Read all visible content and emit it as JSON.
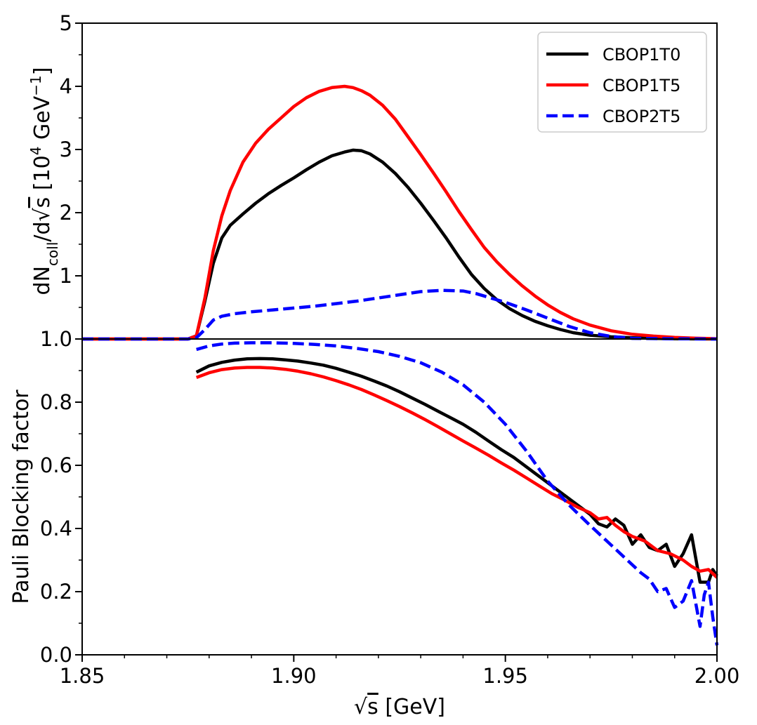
{
  "chart_data": [
    {
      "type": "line",
      "panel": "top",
      "ylabel": {
        "main": "dN",
        "sub": "coll",
        "mid": "/d",
        "root": "√",
        "s": "s",
        "bracket_open": " [10",
        "sup": "4",
        "unit": " GeV",
        "sup2": "−1",
        "bracket_close": "]"
      },
      "xlim": [
        1.85,
        2.0
      ],
      "ylim": [
        0,
        5
      ],
      "yticks": [
        1,
        2,
        3,
        4,
        5
      ],
      "ytick_labels": [
        "1",
        "2",
        "3",
        "4",
        "5"
      ],
      "grid": false,
      "legend_position": "top-right",
      "series": [
        {
          "name": "CBOP1T0",
          "color": "#000000",
          "style": "solid",
          "x": [
            1.85,
            1.875,
            1.877,
            1.879,
            1.881,
            1.883,
            1.885,
            1.888,
            1.891,
            1.894,
            1.897,
            1.9,
            1.903,
            1.906,
            1.909,
            1.912,
            1.914,
            1.916,
            1.918,
            1.921,
            1.924,
            1.927,
            1.93,
            1.933,
            1.936,
            1.939,
            1.942,
            1.945,
            1.948,
            1.951,
            1.954,
            1.957,
            1.96,
            1.963,
            1.966,
            1.97,
            1.975,
            1.98,
            1.985,
            1.99,
            2.0
          ],
          "y": [
            0,
            0,
            0.05,
            0.6,
            1.2,
            1.6,
            1.8,
            1.98,
            2.15,
            2.3,
            2.43,
            2.55,
            2.68,
            2.8,
            2.9,
            2.96,
            2.99,
            2.98,
            2.93,
            2.8,
            2.62,
            2.4,
            2.15,
            1.88,
            1.6,
            1.3,
            1.02,
            0.8,
            0.62,
            0.48,
            0.37,
            0.28,
            0.21,
            0.15,
            0.1,
            0.06,
            0.035,
            0.02,
            0.01,
            0.005,
            0
          ]
        },
        {
          "name": "CBOP1T5",
          "color": "#ff0000",
          "style": "solid",
          "x": [
            1.85,
            1.875,
            1.877,
            1.879,
            1.881,
            1.883,
            1.885,
            1.888,
            1.891,
            1.894,
            1.897,
            1.9,
            1.903,
            1.906,
            1.909,
            1.912,
            1.914,
            1.916,
            1.918,
            1.921,
            1.924,
            1.927,
            1.93,
            1.933,
            1.936,
            1.939,
            1.942,
            1.945,
            1.948,
            1.951,
            1.954,
            1.957,
            1.96,
            1.963,
            1.966,
            1.97,
            1.975,
            1.98,
            1.985,
            1.99,
            1.995,
            2.0
          ],
          "y": [
            0,
            0,
            0.05,
            0.65,
            1.4,
            1.95,
            2.35,
            2.8,
            3.1,
            3.32,
            3.5,
            3.68,
            3.82,
            3.92,
            3.98,
            4.0,
            3.98,
            3.93,
            3.86,
            3.7,
            3.48,
            3.2,
            2.92,
            2.63,
            2.33,
            2.02,
            1.73,
            1.45,
            1.22,
            1.02,
            0.84,
            0.68,
            0.54,
            0.42,
            0.32,
            0.22,
            0.13,
            0.075,
            0.045,
            0.025,
            0.012,
            0.005
          ]
        },
        {
          "name": "CBOP2T5",
          "color": "#0000ff",
          "style": "dashed",
          "x": [
            1.85,
            1.875,
            1.877,
            1.879,
            1.881,
            1.883,
            1.886,
            1.89,
            1.895,
            1.9,
            1.905,
            1.91,
            1.915,
            1.92,
            1.925,
            1.93,
            1.935,
            1.94,
            1.943,
            1.946,
            1.95,
            1.955,
            1.96,
            1.965,
            1.97,
            1.975,
            1.98,
            1.99,
            2.0
          ],
          "y": [
            0,
            0,
            0.02,
            0.15,
            0.3,
            0.36,
            0.4,
            0.43,
            0.46,
            0.49,
            0.52,
            0.56,
            0.6,
            0.65,
            0.7,
            0.75,
            0.77,
            0.76,
            0.72,
            0.66,
            0.58,
            0.46,
            0.33,
            0.2,
            0.1,
            0.04,
            0.01,
            0.003,
            0
          ]
        }
      ]
    },
    {
      "type": "line",
      "panel": "bottom",
      "title": "",
      "xlabel": {
        "root": "√",
        "s": "s",
        "unit": " [GeV]"
      },
      "ylabel": "Pauli Blocking factor",
      "xlim": [
        1.85,
        2.0
      ],
      "ylim": [
        0,
        1.0
      ],
      "xticks": [
        1.85,
        1.9,
        1.95,
        2.0
      ],
      "xtick_labels": [
        "1.85",
        "1.90",
        "1.95",
        "2.00"
      ],
      "yticks": [
        0.0,
        0.2,
        0.4,
        0.6,
        0.8,
        1.0
      ],
      "ytick_labels": [
        "0.0",
        "0.2",
        "0.4",
        "0.6",
        "0.8",
        "1.0"
      ],
      "grid": false,
      "series": [
        {
          "name": "CBOP1T0",
          "color": "#000000",
          "style": "solid",
          "x": [
            1.877,
            1.88,
            1.883,
            1.886,
            1.889,
            1.892,
            1.895,
            1.898,
            1.901,
            1.904,
            1.907,
            1.91,
            1.913,
            1.916,
            1.919,
            1.922,
            1.925,
            1.928,
            1.931,
            1.934,
            1.937,
            1.94,
            1.943,
            1.946,
            1.949,
            1.952,
            1.955,
            1.958,
            1.961,
            1.964,
            1.967,
            1.97,
            1.972,
            1.974,
            1.976,
            1.978,
            1.98,
            1.982,
            1.984,
            1.986,
            1.988,
            1.99,
            1.992,
            1.994,
            1.996,
            1.998,
            1.999,
            2.0
          ],
          "y": [
            0.895,
            0.915,
            0.926,
            0.933,
            0.937,
            0.938,
            0.937,
            0.934,
            0.93,
            0.924,
            0.917,
            0.907,
            0.895,
            0.882,
            0.867,
            0.851,
            0.833,
            0.813,
            0.793,
            0.772,
            0.751,
            0.73,
            0.705,
            0.677,
            0.65,
            0.625,
            0.595,
            0.565,
            0.535,
            0.505,
            0.475,
            0.445,
            0.415,
            0.405,
            0.43,
            0.41,
            0.35,
            0.38,
            0.34,
            0.33,
            0.35,
            0.28,
            0.32,
            0.38,
            0.23,
            0.23,
            0.27,
            0.25
          ]
        },
        {
          "name": "CBOP1T5",
          "color": "#ff0000",
          "style": "solid",
          "x": [
            1.877,
            1.88,
            1.883,
            1.886,
            1.889,
            1.892,
            1.895,
            1.898,
            1.901,
            1.904,
            1.907,
            1.91,
            1.913,
            1.916,
            1.919,
            1.922,
            1.925,
            1.928,
            1.931,
            1.934,
            1.937,
            1.94,
            1.943,
            1.946,
            1.949,
            1.952,
            1.955,
            1.958,
            1.961,
            1.964,
            1.967,
            1.97,
            1.972,
            1.974,
            1.976,
            1.978,
            1.98,
            1.983,
            1.986,
            1.989,
            1.992,
            1.994,
            1.996,
            1.998,
            2.0
          ],
          "y": [
            0.878,
            0.893,
            0.903,
            0.908,
            0.91,
            0.91,
            0.908,
            0.904,
            0.898,
            0.89,
            0.88,
            0.868,
            0.855,
            0.84,
            0.823,
            0.805,
            0.786,
            0.766,
            0.745,
            0.723,
            0.7,
            0.677,
            0.655,
            0.632,
            0.608,
            0.585,
            0.56,
            0.535,
            0.51,
            0.49,
            0.468,
            0.45,
            0.43,
            0.435,
            0.41,
            0.39,
            0.375,
            0.36,
            0.33,
            0.32,
            0.3,
            0.28,
            0.265,
            0.27,
            0.245
          ]
        },
        {
          "name": "CBOP2T5",
          "color": "#0000ff",
          "style": "dashed",
          "x": [
            1.877,
            1.88,
            1.883,
            1.886,
            1.89,
            1.895,
            1.9,
            1.905,
            1.91,
            1.915,
            1.92,
            1.925,
            1.93,
            1.935,
            1.94,
            1.945,
            1.95,
            1.955,
            1.96,
            1.965,
            1.97,
            1.974,
            1.978,
            1.982,
            1.984,
            1.986,
            1.988,
            1.99,
            1.992,
            1.994,
            1.996,
            1.997,
            1.998,
            1.999,
            2.0
          ],
          "y": [
            0.967,
            0.978,
            0.984,
            0.987,
            0.988,
            0.988,
            0.986,
            0.983,
            0.978,
            0.97,
            0.96,
            0.945,
            0.925,
            0.895,
            0.855,
            0.8,
            0.73,
            0.645,
            0.55,
            0.475,
            0.41,
            0.36,
            0.31,
            0.26,
            0.24,
            0.2,
            0.21,
            0.15,
            0.17,
            0.235,
            0.09,
            0.19,
            0.23,
            0.12,
            0.03
          ]
        }
      ]
    }
  ]
}
